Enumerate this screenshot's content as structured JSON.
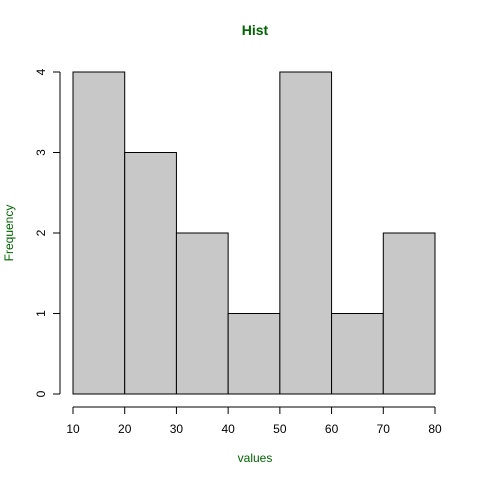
{
  "chart_data": {
    "type": "bar",
    "title": "Hist",
    "xlabel": "values",
    "ylabel": "Frequency",
    "bins": [
      {
        "start": 10,
        "end": 20,
        "count": 4
      },
      {
        "start": 20,
        "end": 30,
        "count": 3
      },
      {
        "start": 30,
        "end": 40,
        "count": 2
      },
      {
        "start": 40,
        "end": 50,
        "count": 1
      },
      {
        "start": 50,
        "end": 60,
        "count": 4
      },
      {
        "start": 60,
        "end": 70,
        "count": 1
      },
      {
        "start": 70,
        "end": 80,
        "count": 2
      }
    ],
    "xlim": [
      10,
      80
    ],
    "ylim": [
      0,
      4
    ],
    "x_ticks": [
      "10",
      "20",
      "30",
      "40",
      "50",
      "60",
      "70",
      "80"
    ],
    "y_ticks": [
      "0",
      "1",
      "2",
      "3",
      "4"
    ],
    "grid": false,
    "legend": "none",
    "colors": {
      "bar_fill": "#c8c8c8",
      "bar_stroke": "#000000",
      "title": "#006400",
      "axis_label": "#006400"
    }
  }
}
